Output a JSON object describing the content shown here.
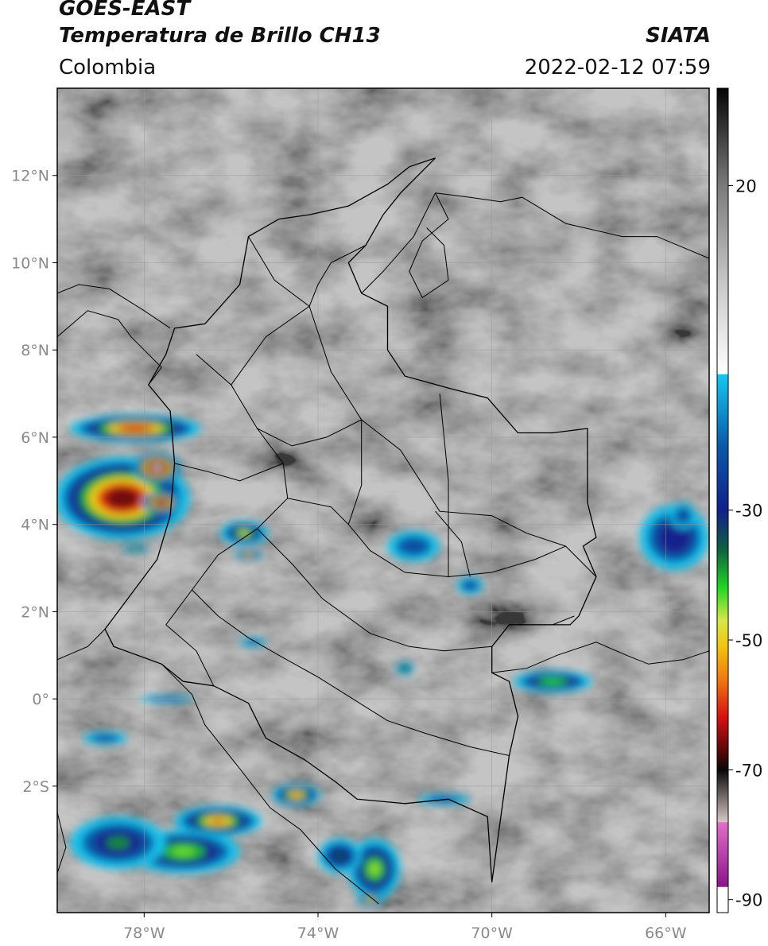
{
  "header": {
    "satellite": "GOES-EAST",
    "product": "Temperatura de Brillo CH13",
    "region": "Colombia",
    "organization": "SIATA",
    "timestamp": "2022-02-12 07:59"
  },
  "map": {
    "lon_range": [
      -80.0,
      -65.0
    ],
    "lat_range": [
      -4.9,
      14.0
    ],
    "lat_ticks": [
      {
        "value": 12,
        "label": "12°N"
      },
      {
        "value": 10,
        "label": "10°N"
      },
      {
        "value": 8,
        "label": "8°N"
      },
      {
        "value": 6,
        "label": "6°N"
      },
      {
        "value": 4,
        "label": "4°N"
      },
      {
        "value": 2,
        "label": "2°N"
      },
      {
        "value": 0,
        "label": "0°"
      },
      {
        "value": -2,
        "label": "2°S"
      }
    ],
    "lon_ticks": [
      {
        "value": -78,
        "label": "78°W"
      },
      {
        "value": -74,
        "label": "74°W"
      },
      {
        "value": -70,
        "label": "70°W"
      },
      {
        "value": -66,
        "label": "66°W"
      }
    ],
    "gridlines": true
  },
  "colorbar": {
    "range": [
      -92,
      35
    ],
    "ticks": [
      {
        "value": 20,
        "label": "20"
      },
      {
        "value": -30,
        "label": "-30"
      },
      {
        "value": -50,
        "label": "-50"
      },
      {
        "value": -70,
        "label": "-70"
      },
      {
        "value": -90,
        "label": "-90"
      }
    ],
    "stops": [
      {
        "t": 35,
        "color": "#050505"
      },
      {
        "t": 20,
        "color": "#7a7a7a"
      },
      {
        "t": 5,
        "color": "#c8c8c8"
      },
      {
        "t": -9,
        "color": "#ffffff"
      },
      {
        "t": -9.1,
        "color": "#16c8f0"
      },
      {
        "t": -20,
        "color": "#0a5aa8"
      },
      {
        "t": -30,
        "color": "#12208c"
      },
      {
        "t": -36,
        "color": "#0e6040"
      },
      {
        "t": -42,
        "color": "#22d622"
      },
      {
        "t": -47,
        "color": "#d7e84a"
      },
      {
        "t": -51,
        "color": "#f1c40f"
      },
      {
        "t": -56,
        "color": "#f07a10"
      },
      {
        "t": -62,
        "color": "#d41010"
      },
      {
        "t": -67,
        "color": "#5a0808"
      },
      {
        "t": -70,
        "color": "#080808"
      },
      {
        "t": -78,
        "color": "#d8c6c6"
      },
      {
        "t": -78.1,
        "color": "#e070c8"
      },
      {
        "t": -88,
        "color": "#8a148a"
      },
      {
        "t": -88.1,
        "color": "#ffffff"
      },
      {
        "t": -92,
        "color": "#ffffff"
      }
    ]
  },
  "storm_cells": [
    {
      "lon": -78.2,
      "lat": 6.2,
      "rx": 1.5,
      "ry": 0.32,
      "peak": -62
    },
    {
      "lon": -78.5,
      "lat": 4.6,
      "rx": 1.55,
      "ry": 0.95,
      "peak": -66
    },
    {
      "lon": -77.7,
      "lat": 5.3,
      "rx": 0.55,
      "ry": 0.35,
      "peak": -78
    },
    {
      "lon": -77.6,
      "lat": 4.5,
      "rx": 0.45,
      "ry": 0.25,
      "peak": -76
    },
    {
      "lon": -75.7,
      "lat": 3.8,
      "rx": 0.55,
      "ry": 0.28,
      "peak": -48
    },
    {
      "lon": -75.6,
      "lat": 3.3,
      "rx": 0.3,
      "ry": 0.12,
      "peak": -55
    },
    {
      "lon": -78.2,
      "lat": 3.45,
      "rx": 0.28,
      "ry": 0.1,
      "peak": -44
    },
    {
      "lon": -76.3,
      "lat": -2.8,
      "rx": 1.0,
      "ry": 0.35,
      "peak": -58
    },
    {
      "lon": -77.1,
      "lat": -3.5,
      "rx": 1.3,
      "ry": 0.5,
      "peak": -44
    },
    {
      "lon": -78.6,
      "lat": -3.3,
      "rx": 1.1,
      "ry": 0.6,
      "peak": -38
    },
    {
      "lon": -74.5,
      "lat": -2.2,
      "rx": 0.55,
      "ry": 0.25,
      "peak": -57
    },
    {
      "lon": -72.7,
      "lat": -3.9,
      "rx": 0.6,
      "ry": 0.7,
      "peak": -45
    },
    {
      "lon": -73.5,
      "lat": -3.6,
      "rx": 0.5,
      "ry": 0.4,
      "peak": -35
    },
    {
      "lon": -72.8,
      "lat": -4.6,
      "rx": 0.3,
      "ry": 0.15,
      "peak": -50
    },
    {
      "lon": -68.6,
      "lat": 0.4,
      "rx": 0.9,
      "ry": 0.25,
      "peak": -42
    },
    {
      "lon": -65.8,
      "lat": 3.7,
      "rx": 0.8,
      "ry": 0.75,
      "peak": -30
    },
    {
      "lon": -65.6,
      "lat": 4.2,
      "rx": 0.3,
      "ry": 0.3,
      "peak": -25
    },
    {
      "lon": -72.0,
      "lat": 0.7,
      "rx": 0.2,
      "ry": 0.15,
      "peak": -40
    },
    {
      "lon": -71.8,
      "lat": 3.5,
      "rx": 0.6,
      "ry": 0.35,
      "peak": -22
    },
    {
      "lon": -70.5,
      "lat": 2.6,
      "rx": 0.3,
      "ry": 0.2,
      "peak": -25
    },
    {
      "lon": -75.5,
      "lat": 1.3,
      "rx": 0.3,
      "ry": 0.1,
      "peak": -25
    },
    {
      "lon": -71.1,
      "lat": -2.3,
      "rx": 0.6,
      "ry": 0.12,
      "peak": -25
    },
    {
      "lon": -77.5,
      "lat": 0.0,
      "rx": 0.6,
      "ry": 0.08,
      "peak": -20
    },
    {
      "lon": -78.9,
      "lat": -0.9,
      "rx": 0.5,
      "ry": 0.15,
      "peak": -20
    }
  ],
  "boundaries": {
    "colombia_outline": [
      [
        -71.3,
        12.4
      ],
      [
        -71.9,
        12.2
      ],
      [
        -72.4,
        11.8
      ],
      [
        -73.3,
        11.3
      ],
      [
        -74.2,
        11.1
      ],
      [
        -74.9,
        11.0
      ],
      [
        -75.6,
        10.6
      ],
      [
        -75.8,
        9.5
      ],
      [
        -76.6,
        8.6
      ],
      [
        -77.3,
        8.5
      ],
      [
        -77.5,
        7.9
      ],
      [
        -77.9,
        7.2
      ],
      [
        -77.4,
        6.6
      ],
      [
        -77.3,
        5.4
      ],
      [
        -77.4,
        4.2
      ],
      [
        -77.7,
        3.2
      ],
      [
        -78.3,
        2.4
      ],
      [
        -78.9,
        1.6
      ],
      [
        -78.7,
        1.2
      ],
      [
        -77.6,
        0.8
      ],
      [
        -77.1,
        0.4
      ],
      [
        -76.4,
        0.3
      ],
      [
        -75.6,
        -0.1
      ],
      [
        -75.2,
        -0.9
      ],
      [
        -74.3,
        -1.4
      ],
      [
        -73.6,
        -1.9
      ],
      [
        -73.1,
        -2.3
      ],
      [
        -72.0,
        -2.4
      ],
      [
        -71.0,
        -2.3
      ],
      [
        -70.1,
        -2.7
      ],
      [
        -70.0,
        -4.2
      ],
      [
        -69.6,
        -1.3
      ],
      [
        -69.4,
        -0.4
      ],
      [
        -69.6,
        0.4
      ],
      [
        -70.0,
        0.6
      ],
      [
        -70.0,
        1.2
      ],
      [
        -69.6,
        1.7
      ],
      [
        -68.2,
        1.7
      ],
      [
        -68.0,
        1.9
      ],
      [
        -67.6,
        2.8
      ],
      [
        -67.9,
        3.5
      ],
      [
        -67.6,
        3.7
      ],
      [
        -67.8,
        4.5
      ],
      [
        -67.8,
        6.2
      ],
      [
        -68.6,
        6.1
      ],
      [
        -69.4,
        6.1
      ],
      [
        -70.1,
        6.9
      ],
      [
        -70.9,
        7.1
      ],
      [
        -72.0,
        7.4
      ],
      [
        -72.4,
        8.0
      ],
      [
        -72.4,
        9.0
      ],
      [
        -73.0,
        9.3
      ],
      [
        -73.3,
        10.0
      ],
      [
        -72.9,
        10.4
      ],
      [
        -72.5,
        11.1
      ],
      [
        -72.1,
        11.6
      ],
      [
        -71.3,
        12.4
      ]
    ],
    "other_lines": [
      [
        [
          -73.0,
          9.3
        ],
        [
          -72.5,
          9.8
        ],
        [
          -71.8,
          10.6
        ],
        [
          -71.6,
          11.0
        ],
        [
          -71.3,
          11.6
        ]
      ],
      [
        [
          -71.3,
          11.6
        ],
        [
          -71.0,
          11.0
        ],
        [
          -71.6,
          10.5
        ],
        [
          -71.9,
          9.8
        ],
        [
          -71.6,
          9.2
        ],
        [
          -71.0,
          9.6
        ],
        [
          -71.1,
          10.4
        ],
        [
          -71.5,
          10.8
        ]
      ],
      [
        [
          -71.3,
          11.6
        ],
        [
          -70.5,
          11.5
        ],
        [
          -69.8,
          11.4
        ],
        [
          -69.3,
          11.5
        ],
        [
          -68.3,
          10.9
        ],
        [
          -67.0,
          10.6
        ],
        [
          -66.2,
          10.6
        ],
        [
          -65.0,
          10.1
        ]
      ],
      [
        [
          -80.0,
          9.3
        ],
        [
          -79.5,
          9.5
        ],
        [
          -78.8,
          9.4
        ],
        [
          -78.0,
          8.9
        ],
        [
          -77.4,
          8.5
        ]
      ],
      [
        [
          -80.0,
          8.3
        ],
        [
          -79.3,
          8.9
        ],
        [
          -78.6,
          8.7
        ],
        [
          -78.3,
          8.3
        ],
        [
          -78.0,
          8.0
        ],
        [
          -77.6,
          7.6
        ],
        [
          -77.9,
          7.2
        ]
      ],
      [
        [
          -80.0,
          0.9
        ],
        [
          -79.3,
          1.2
        ],
        [
          -78.9,
          1.6
        ]
      ],
      [
        [
          -80.0,
          -2.6
        ],
        [
          -79.8,
          -3.4
        ],
        [
          -80.0,
          -4.0
        ]
      ],
      [
        [
          -77.6,
          0.8
        ],
        [
          -76.9,
          0.1
        ],
        [
          -76.6,
          -0.6
        ],
        [
          -75.8,
          -1.6
        ],
        [
          -75.1,
          -2.5
        ],
        [
          -74.4,
          -3.0
        ],
        [
          -73.6,
          -3.9
        ],
        [
          -72.6,
          -4.7
        ]
      ],
      [
        [
          -70.0,
          0.6
        ],
        [
          -69.2,
          0.7
        ],
        [
          -68.5,
          1.0
        ],
        [
          -67.6,
          1.3
        ],
        [
          -66.9,
          1.0
        ],
        [
          -66.4,
          0.8
        ],
        [
          -65.6,
          0.9
        ],
        [
          -65.0,
          1.1
        ]
      ],
      [
        [
          -69.6,
          1.7
        ],
        [
          -68.6,
          1.7
        ],
        [
          -68.1,
          1.9
        ]
      ],
      [
        [
          -71.3,
          4.3
        ],
        [
          -70.7,
          3.6
        ],
        [
          -70.5,
          2.8
        ]
      ],
      [
        [
          -71.2,
          7.0
        ],
        [
          -71.0,
          5.0
        ],
        [
          -71.0,
          2.8
        ]
      ],
      [
        [
          -75.6,
          10.6
        ],
        [
          -75.0,
          9.6
        ],
        [
          -74.2,
          9.0
        ],
        [
          -73.7,
          7.5
        ],
        [
          -73.0,
          6.4
        ],
        [
          -72.1,
          5.7
        ],
        [
          -71.2,
          4.3
        ],
        [
          -70.0,
          4.2
        ],
        [
          -69.2,
          3.8
        ],
        [
          -68.3,
          3.5
        ],
        [
          -67.6,
          2.8
        ]
      ],
      [
        [
          -76.8,
          7.9
        ],
        [
          -76.0,
          7.2
        ],
        [
          -75.4,
          6.2
        ],
        [
          -74.8,
          5.4
        ],
        [
          -74.7,
          4.6
        ],
        [
          -75.4,
          3.9
        ],
        [
          -76.3,
          3.3
        ],
        [
          -76.9,
          2.5
        ],
        [
          -77.5,
          1.7
        ]
      ],
      [
        [
          -74.2,
          9.0
        ],
        [
          -75.2,
          8.3
        ],
        [
          -76.0,
          7.2
        ]
      ],
      [
        [
          -72.9,
          10.4
        ],
        [
          -73.7,
          10.0
        ],
        [
          -74.0,
          9.5
        ],
        [
          -74.2,
          9.0
        ]
      ],
      [
        [
          -74.7,
          4.6
        ],
        [
          -73.7,
          4.4
        ],
        [
          -73.3,
          4.0
        ],
        [
          -72.8,
          3.4
        ],
        [
          -72.0,
          2.9
        ],
        [
          -71.0,
          2.8
        ],
        [
          -70.0,
          2.9
        ],
        [
          -69.0,
          3.2
        ],
        [
          -68.3,
          3.5
        ]
      ],
      [
        [
          -75.4,
          3.9
        ],
        [
          -74.6,
          3.1
        ],
        [
          -73.9,
          2.3
        ],
        [
          -72.8,
          1.5
        ],
        [
          -71.9,
          1.2
        ],
        [
          -71.1,
          1.1
        ],
        [
          -70.0,
          1.2
        ]
      ],
      [
        [
          -76.9,
          2.5
        ],
        [
          -76.3,
          1.9
        ],
        [
          -75.6,
          1.4
        ],
        [
          -74.9,
          1.0
        ],
        [
          -74.0,
          0.5
        ],
        [
          -73.2,
          0.0
        ],
        [
          -72.4,
          -0.5
        ],
        [
          -71.5,
          -0.8
        ],
        [
          -70.5,
          -1.1
        ],
        [
          -69.6,
          -1.3
        ]
      ],
      [
        [
          -77.5,
          1.7
        ],
        [
          -76.8,
          1.1
        ],
        [
          -76.4,
          0.3
        ]
      ],
      [
        [
          -73.0,
          6.4
        ],
        [
          -73.8,
          6.0
        ],
        [
          -74.6,
          5.8
        ],
        [
          -75.4,
          6.2
        ]
      ],
      [
        [
          -73.3,
          4.0
        ],
        [
          -73.0,
          4.9
        ],
        [
          -73.0,
          6.4
        ]
      ],
      [
        [
          -77.3,
          5.4
        ],
        [
          -76.5,
          5.2
        ],
        [
          -75.8,
          5.0
        ],
        [
          -74.8,
          5.4
        ]
      ]
    ]
  }
}
